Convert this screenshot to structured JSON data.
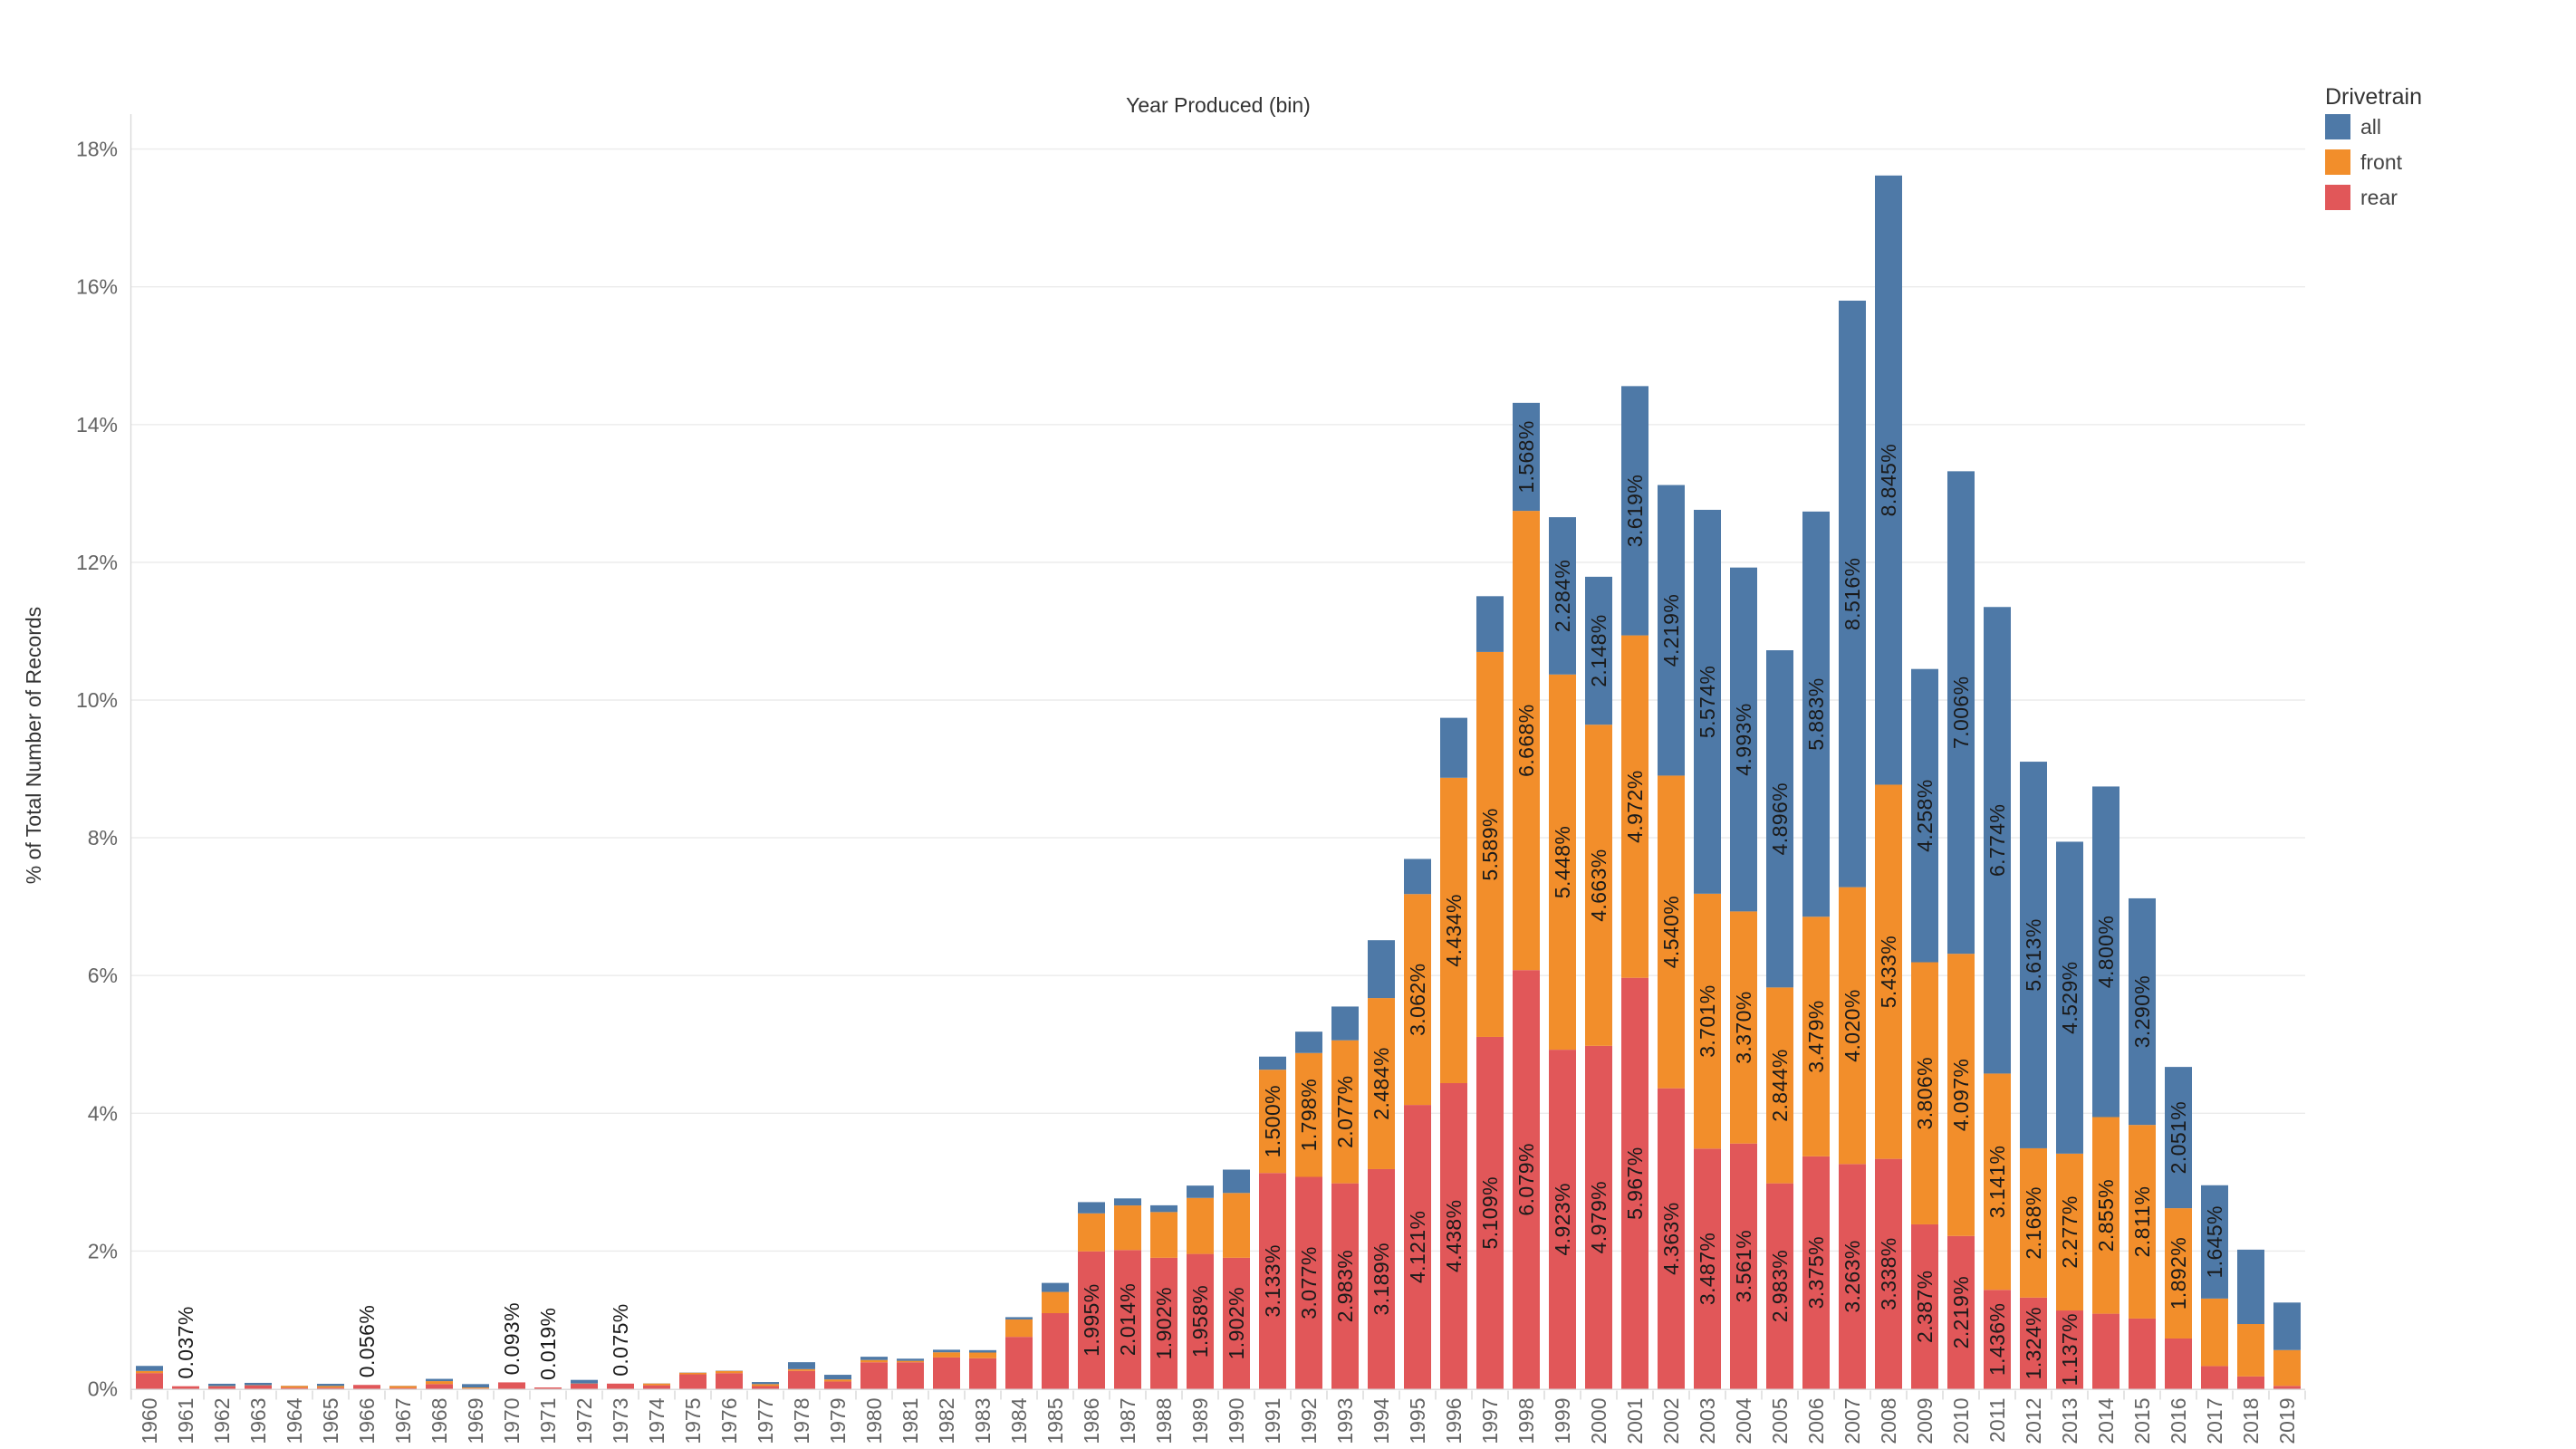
{
  "title": "Year Produced (bin)",
  "y_axis": {
    "title": "% of Total Number of Records",
    "tick_labels": [
      "0%",
      "2%",
      "4%",
      "6%",
      "8%",
      "10%",
      "12%",
      "14%",
      "16%",
      "18%"
    ]
  },
  "legend": {
    "title": "Drivetrain",
    "items": [
      {
        "label": "all",
        "color": "#4e79a7"
      },
      {
        "label": "front",
        "color": "#f28e2b"
      },
      {
        "label": "rear",
        "color": "#e15759"
      }
    ]
  },
  "chart_data": {
    "type": "bar",
    "stacked": true,
    "title": "Year Produced (bin)",
    "xlabel": "Year Produced (bin)",
    "ylabel": "% of Total Number of Records",
    "ylim": [
      0,
      18
    ],
    "y_tick_step": 2,
    "grid": true,
    "legend_position": "top-right",
    "categories": [
      1960,
      1961,
      1962,
      1963,
      1964,
      1965,
      1966,
      1967,
      1968,
      1969,
      1970,
      1971,
      1972,
      1973,
      1974,
      1975,
      1976,
      1977,
      1978,
      1979,
      1980,
      1981,
      1982,
      1983,
      1984,
      1985,
      1986,
      1987,
      1988,
      1989,
      1990,
      1991,
      1992,
      1993,
      1994,
      1995,
      1996,
      1997,
      1998,
      1999,
      2000,
      2001,
      2002,
      2003,
      2004,
      2005,
      2006,
      2007,
      2008,
      2009,
      2010,
      2011,
      2012,
      2013,
      2014,
      2015,
      2016,
      2017,
      2018,
      2019
    ],
    "series": [
      {
        "name": "rear",
        "color": "#e15759",
        "values": [
          0.228,
          0.037,
          0.035,
          0.048,
          0.015,
          0.016,
          0.056,
          0.012,
          0.069,
          0.004,
          0.093,
          0.019,
          0.073,
          0.075,
          0.051,
          0.21,
          0.227,
          0.039,
          0.26,
          0.106,
          0.385,
          0.385,
          0.455,
          0.443,
          0.754,
          1.098,
          1.995,
          2.014,
          1.902,
          1.958,
          1.902,
          3.133,
          3.077,
          2.983,
          3.189,
          4.121,
          4.438,
          5.109,
          6.079,
          4.923,
          4.979,
          5.967,
          4.363,
          3.487,
          3.561,
          2.983,
          3.375,
          3.263,
          3.338,
          2.387,
          2.219,
          1.436,
          1.324,
          1.137,
          1.09,
          1.02,
          0.73,
          0.33,
          0.18,
          0.042
        ],
        "labels": [
          null,
          null,
          null,
          null,
          null,
          null,
          null,
          null,
          null,
          null,
          null,
          null,
          null,
          null,
          null,
          null,
          null,
          null,
          null,
          null,
          null,
          null,
          null,
          null,
          null,
          null,
          "1.995%",
          "2.014%",
          "1.902%",
          "1.958%",
          "1.902%",
          "3.133%",
          "3.077%",
          "2.983%",
          "3.189%",
          "4.121%",
          "4.438%",
          "5.109%",
          "6.079%",
          "4.923%",
          "4.979%",
          "5.967%",
          "4.363%",
          "3.487%",
          "3.561%",
          "2.983%",
          "3.375%",
          "3.263%",
          "3.338%",
          "2.387%",
          "2.219%",
          "1.436%",
          "1.324%",
          "1.137%",
          null,
          null,
          null,
          null,
          null,
          null
        ]
      },
      {
        "name": "front",
        "color": "#f28e2b",
        "values": [
          0.031,
          0.0,
          0.004,
          0.004,
          0.027,
          0.025,
          0.0,
          0.029,
          0.042,
          0.015,
          0.0,
          0.0,
          0.004,
          0.0,
          0.026,
          0.024,
          0.033,
          0.029,
          0.025,
          0.03,
          0.033,
          0.021,
          0.075,
          0.083,
          0.253,
          0.308,
          0.552,
          0.648,
          0.664,
          0.813,
          0.941,
          1.5,
          1.798,
          2.077,
          2.484,
          3.062,
          4.434,
          5.589,
          6.668,
          5.448,
          4.663,
          4.972,
          4.54,
          3.701,
          3.37,
          2.844,
          3.479,
          4.02,
          5.433,
          3.806,
          4.097,
          3.141,
          2.168,
          2.277,
          2.855,
          2.811,
          1.892,
          0.98,
          0.76,
          0.52
        ],
        "labels": [
          null,
          null,
          null,
          null,
          null,
          null,
          null,
          null,
          null,
          null,
          null,
          null,
          null,
          null,
          null,
          null,
          null,
          null,
          null,
          null,
          null,
          null,
          null,
          null,
          null,
          null,
          null,
          null,
          null,
          null,
          null,
          "1.500%",
          "1.798%",
          "2.077%",
          "2.484%",
          "3.062%",
          "4.434%",
          "5.589%",
          "6.668%",
          "5.448%",
          "4.663%",
          "4.972%",
          "4.540%",
          "3.701%",
          "3.370%",
          "2.844%",
          "3.479%",
          "4.020%",
          "5.433%",
          "3.806%",
          "4.097%",
          "3.141%",
          "2.168%",
          "2.277%",
          "2.855%",
          "2.811%",
          "1.892%",
          null,
          null,
          null
        ]
      },
      {
        "name": "all",
        "color": "#4e79a7",
        "values": [
          0.073,
          0.0,
          0.034,
          0.034,
          0.002,
          0.031,
          0.0,
          0.002,
          0.033,
          0.049,
          0.0,
          0.0,
          0.052,
          0.0,
          0.002,
          0.003,
          0.004,
          0.03,
          0.101,
          0.067,
          0.047,
          0.031,
          0.037,
          0.035,
          0.033,
          0.131,
          0.163,
          0.102,
          0.098,
          0.179,
          0.339,
          0.19,
          0.31,
          0.49,
          0.84,
          0.51,
          0.87,
          0.81,
          1.568,
          2.284,
          2.148,
          3.619,
          4.219,
          5.574,
          4.993,
          4.896,
          5.883,
          8.516,
          8.845,
          4.258,
          7.006,
          6.774,
          5.613,
          4.529,
          4.8,
          3.29,
          2.051,
          1.645,
          1.08,
          0.69
        ],
        "labels": [
          null,
          null,
          null,
          null,
          null,
          null,
          null,
          null,
          null,
          null,
          null,
          null,
          null,
          null,
          null,
          null,
          null,
          null,
          null,
          null,
          null,
          null,
          null,
          null,
          null,
          null,
          null,
          null,
          null,
          null,
          null,
          null,
          null,
          null,
          null,
          null,
          null,
          null,
          "1.568%",
          "2.284%",
          "2.148%",
          "3.619%",
          "4.219%",
          "5.574%",
          "4.993%",
          "4.896%",
          "5.883%",
          "8.516%",
          "8.845%",
          "4.258%",
          "7.006%",
          "6.774%",
          "5.613%",
          "4.529%",
          "4.800%",
          "3.290%",
          "2.051%",
          "1.645%",
          null,
          null
        ]
      }
    ],
    "outside_labels": {
      "1961": "0.037%",
      "1966": "0.056%",
      "1970": "0.093%",
      "1971": "0.019%",
      "1973": "0.075%"
    }
  }
}
